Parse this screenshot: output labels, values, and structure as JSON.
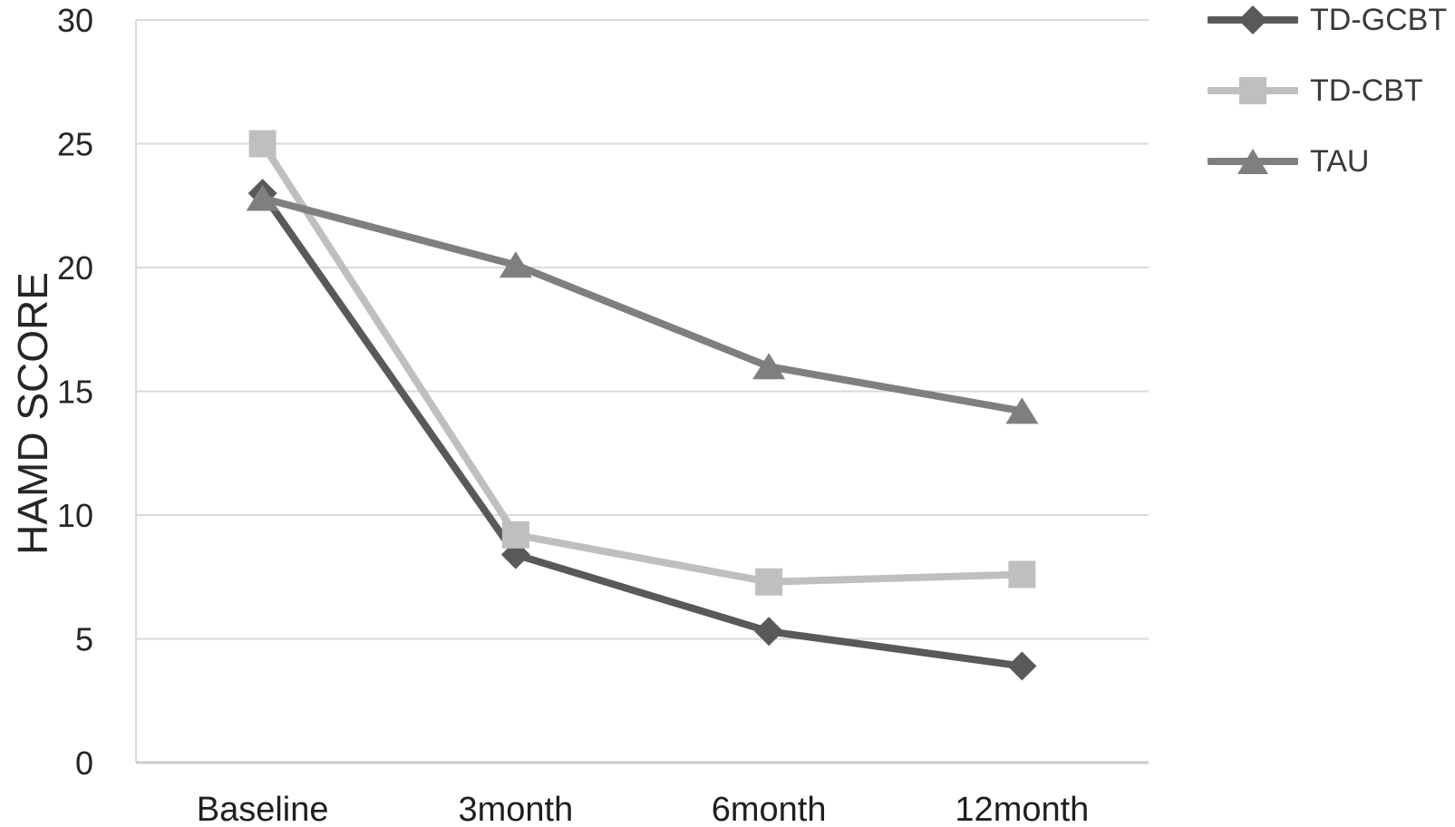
{
  "chart_data": {
    "type": "line",
    "title": "",
    "xlabel": "",
    "ylabel": "HAMD SCORE",
    "categories": [
      "Baseline",
      "3month",
      "6month",
      "12month"
    ],
    "series": [
      {
        "name": "TD-GCBT",
        "marker": "diamond",
        "color": "#595959",
        "values": [
          23.0,
          8.4,
          5.3,
          3.9
        ]
      },
      {
        "name": "TD-CBT",
        "marker": "square",
        "color": "#bfbfbf",
        "values": [
          25.0,
          9.2,
          7.3,
          7.6
        ]
      },
      {
        "name": "TAU",
        "marker": "triangle",
        "color": "#7f7f7f",
        "values": [
          22.8,
          20.1,
          16.0,
          14.2
        ]
      }
    ],
    "ylim": [
      0,
      30
    ],
    "y_ticks": [
      0,
      5,
      10,
      15,
      20,
      25,
      30
    ],
    "grid": true,
    "grid_color": "#d9d9d9",
    "axis_line_color": "#cccccc",
    "text_color": "#262626",
    "legend_position": "top-right"
  }
}
